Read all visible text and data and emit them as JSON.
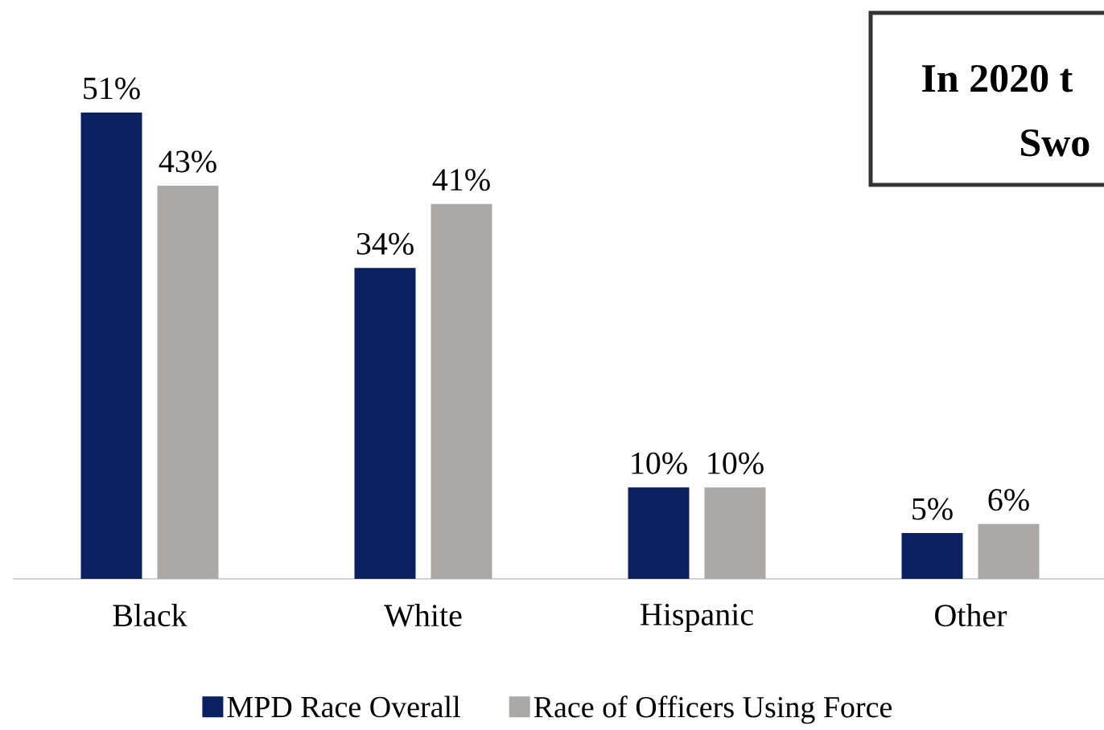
{
  "chart_data": {
    "type": "bar",
    "categories": [
      "Black",
      "White",
      "Hispanic",
      "Other"
    ],
    "series": [
      {
        "name": "MPD Race Overall",
        "color": "#0b2060",
        "values": [
          51,
          34,
          10,
          5
        ],
        "value_labels": [
          "51%",
          "34%",
          "10%",
          "5%"
        ]
      },
      {
        "name": "Race of Officers Using Force",
        "color": "#aba8a8",
        "values": [
          43,
          41,
          10,
          6
        ],
        "value_labels": [
          "43%",
          "41%",
          "10%",
          "6%"
        ]
      }
    ],
    "tick_labels": "x",
    "legend": "bottom",
    "annotations": [
      "In 2020 t",
      "Swo"
    ]
  }
}
